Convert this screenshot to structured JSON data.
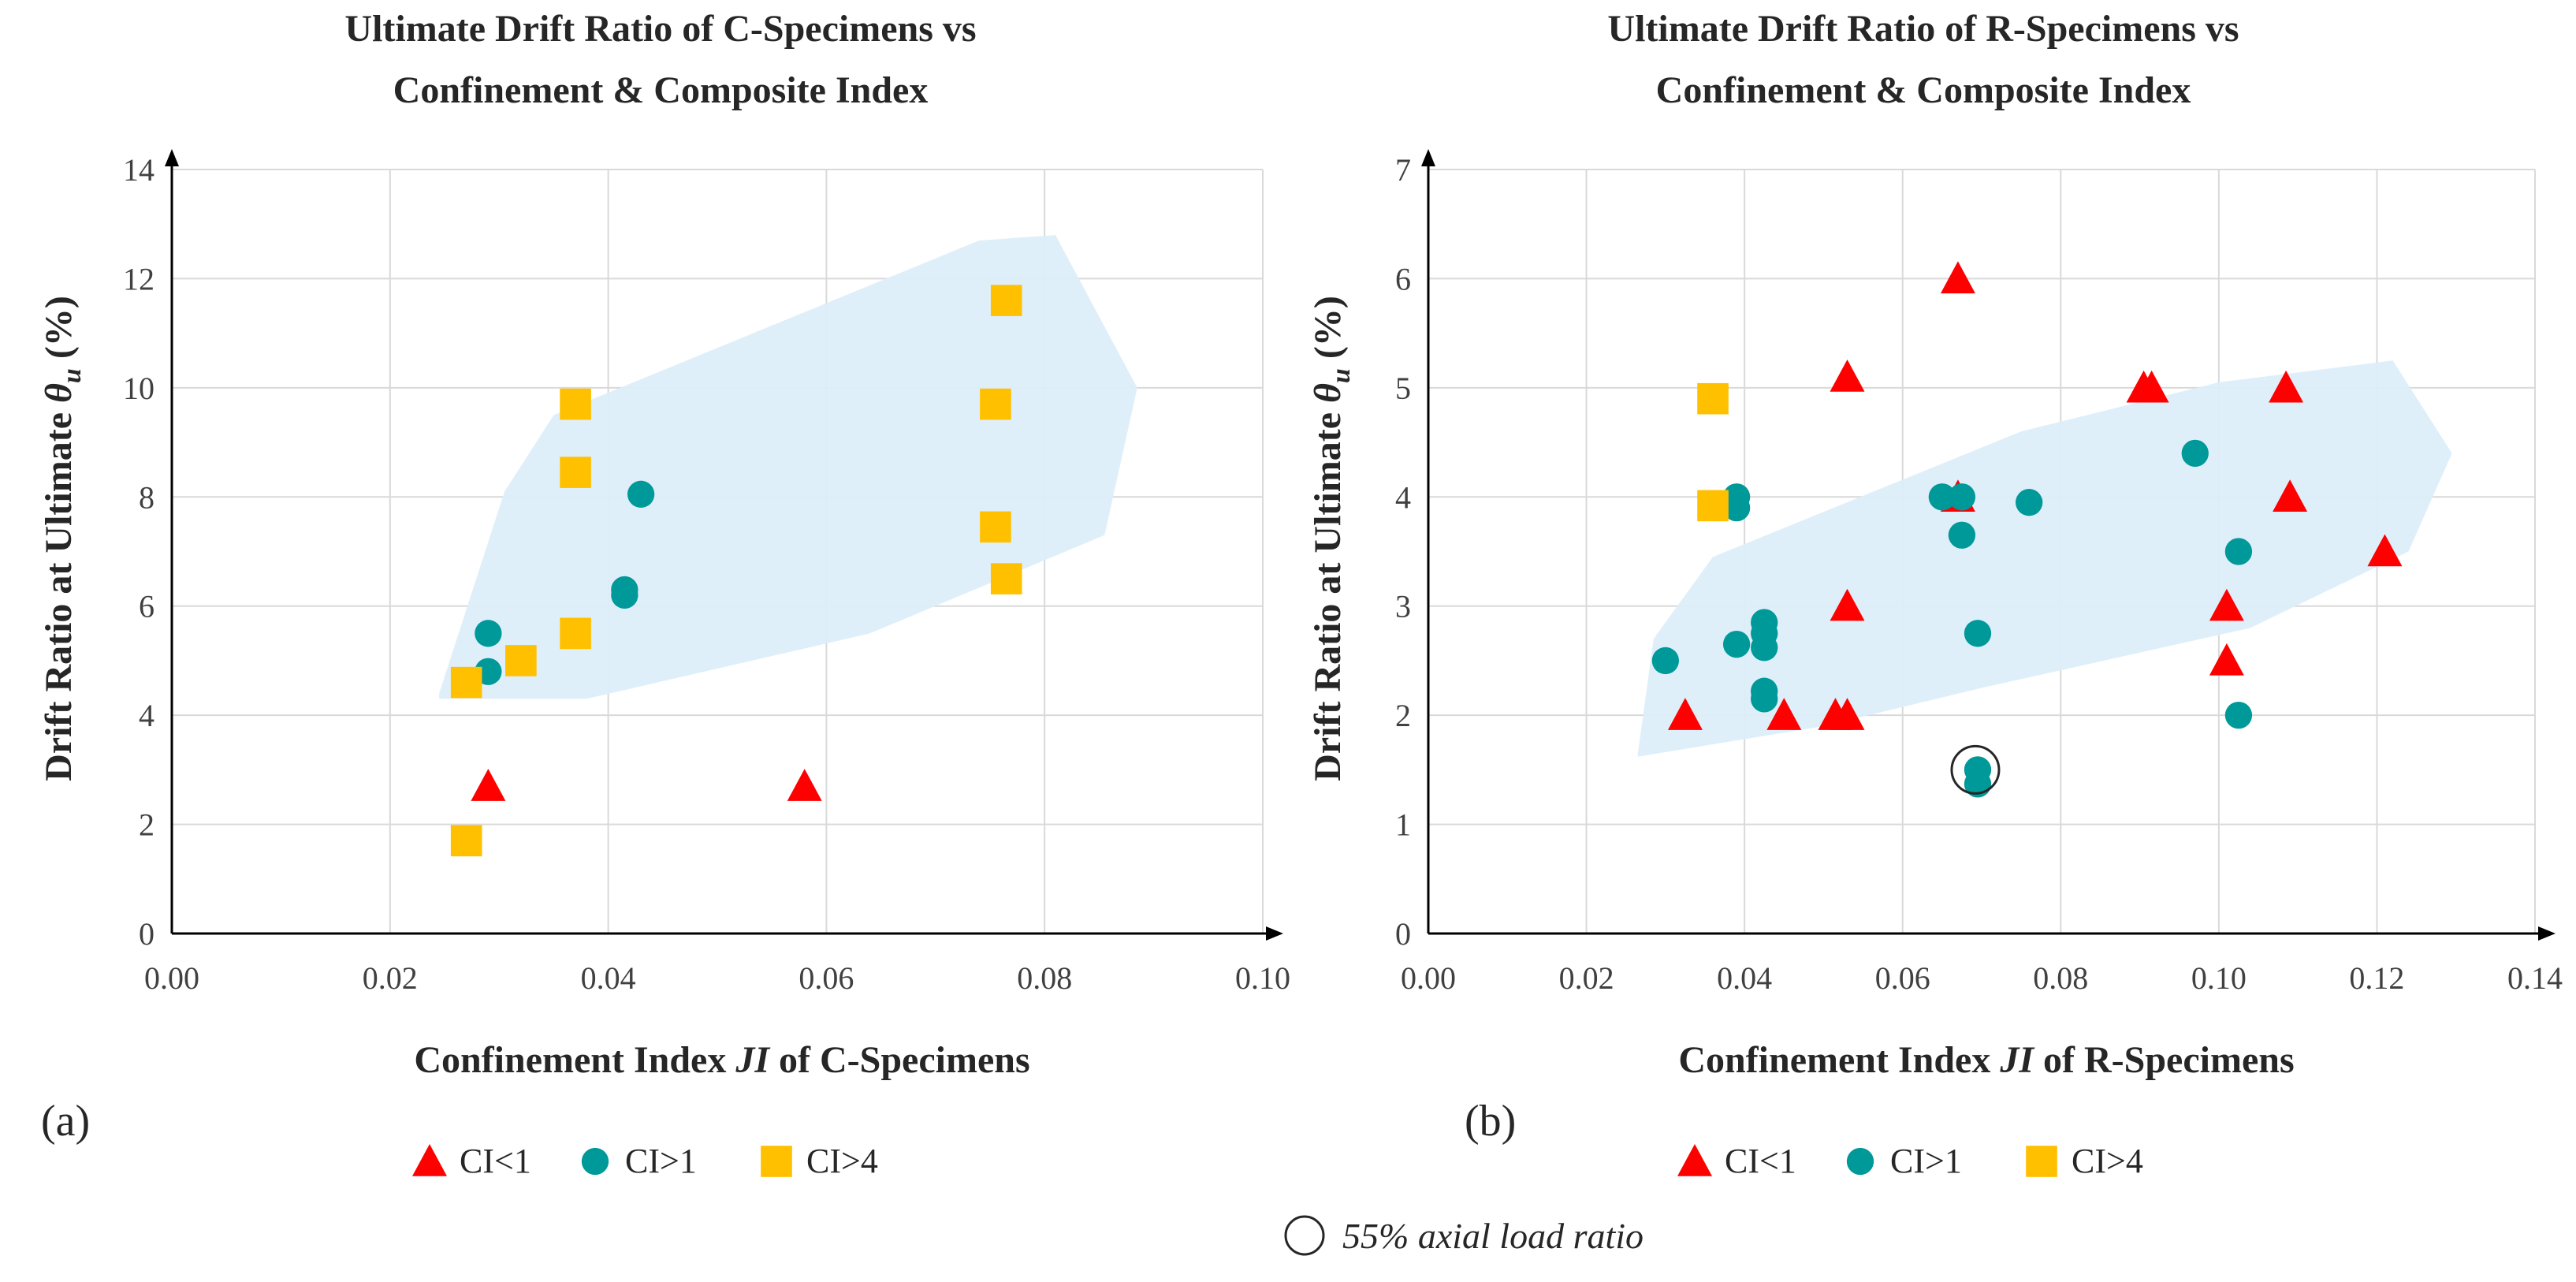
{
  "chart_data": [
    {
      "type": "scatter",
      "panel": "(a)",
      "title_lines": [
        "Ultimate Drift Ratio of C-Specimens vs",
        "Confinement & Composite Index"
      ],
      "xlabel": "Confinement Index JI of C-Specimens",
      "xlabel_parts": [
        "Confinement Index ",
        "JI",
        " of C-Specimens"
      ],
      "ylabel": "Drift Ratio at Ultimate θu (%)",
      "ylabel_parts": [
        "Drift Ratio at Ultimate ",
        "θ",
        "u",
        " (%)"
      ],
      "xlim": [
        0,
        0.1
      ],
      "ylim": [
        0,
        14
      ],
      "xticks": [
        "0.00",
        "0.02",
        "0.04",
        "0.06",
        "0.08",
        "0.10"
      ],
      "yticks": [
        "0",
        "2",
        "4",
        "6",
        "8",
        "10",
        "12",
        "14"
      ],
      "grid": true,
      "region": [
        [
          0.0245,
          4.4
        ],
        [
          0.0305,
          8.1
        ],
        [
          0.035,
          9.5
        ],
        [
          0.074,
          12.7
        ],
        [
          0.081,
          12.8
        ],
        [
          0.0885,
          10.0
        ],
        [
          0.0855,
          7.3
        ],
        [
          0.064,
          5.5
        ],
        [
          0.038,
          4.3
        ],
        [
          0.0245,
          4.3
        ]
      ],
      "series": [
        {
          "name": "CI<1",
          "marker": "triangle",
          "color": "#ff0000",
          "points": [
            [
              0.029,
              2.7
            ],
            [
              0.058,
              2.7
            ]
          ]
        },
        {
          "name": "CI>1",
          "marker": "circle",
          "color": "#009999",
          "points": [
            [
              0.029,
              5.5
            ],
            [
              0.029,
              4.8
            ],
            [
              0.0415,
              6.3
            ],
            [
              0.0415,
              6.2
            ],
            [
              0.043,
              8.05
            ]
          ]
        },
        {
          "name": "CI>4",
          "marker": "square",
          "color": "#ffc000",
          "points": [
            [
              0.027,
              4.6
            ],
            [
              0.027,
              1.7
            ],
            [
              0.032,
              5.0
            ],
            [
              0.037,
              9.7
            ],
            [
              0.037,
              8.45
            ],
            [
              0.037,
              5.5
            ],
            [
              0.0755,
              9.7
            ],
            [
              0.0755,
              7.45
            ],
            [
              0.0765,
              11.6
            ],
            [
              0.0765,
              6.5
            ]
          ]
        }
      ]
    },
    {
      "type": "scatter",
      "panel": "(b)",
      "title_lines": [
        "Ultimate Drift Ratio of R-Specimens vs",
        "Confinement & Composite Index"
      ],
      "xlabel": "Confinement Index JI of R-Specimens",
      "xlabel_parts": [
        "Confinement Index ",
        "JI",
        " of R-Specimens"
      ],
      "ylabel": "Drift Ratio at Ultimate θu (%)",
      "ylabel_parts": [
        "Drift Ratio at Ultimate ",
        "θ",
        "u",
        " (%)"
      ],
      "xlim": [
        0,
        0.14
      ],
      "ylim": [
        0,
        7
      ],
      "xticks": [
        "0.00",
        "0.02",
        "0.04",
        "0.06",
        "0.08",
        "0.10",
        "0.12",
        "0.14"
      ],
      "yticks": [
        "0",
        "1",
        "2",
        "3",
        "4",
        "5",
        "6",
        "7"
      ],
      "grid": true,
      "region": [
        [
          0.0265,
          1.65
        ],
        [
          0.0285,
          2.7
        ],
        [
          0.036,
          3.45
        ],
        [
          0.075,
          4.6
        ],
        [
          0.1,
          5.05
        ],
        [
          0.122,
          5.25
        ],
        [
          0.1295,
          4.4
        ],
        [
          0.124,
          3.5
        ],
        [
          0.104,
          2.8
        ],
        [
          0.07,
          2.25
        ],
        [
          0.05,
          1.9
        ],
        [
          0.0265,
          1.62
        ]
      ],
      "series": [
        {
          "name": "CI<1",
          "marker": "triangle",
          "color": "#ff0000",
          "points": [
            [
              0.0325,
              2.0
            ],
            [
              0.045,
              2.0
            ],
            [
              0.0515,
              2.0
            ],
            [
              0.053,
              2.0
            ],
            [
              0.053,
              3.0
            ],
            [
              0.053,
              5.1
            ],
            [
              0.067,
              6.0
            ],
            [
              0.067,
              4.0
            ],
            [
              0.0905,
              5.0
            ],
            [
              0.0915,
              5.0
            ],
            [
              0.101,
              3.0
            ],
            [
              0.101,
              2.5
            ],
            [
              0.1085,
              5.0
            ],
            [
              0.109,
              4.0
            ],
            [
              0.121,
              3.5
            ]
          ]
        },
        {
          "name": "CI>1",
          "marker": "circle",
          "color": "#009999",
          "points": [
            [
              0.03,
              2.5
            ],
            [
              0.039,
              4.0
            ],
            [
              0.039,
              3.9
            ],
            [
              0.039,
              2.65
            ],
            [
              0.0425,
              2.85
            ],
            [
              0.0425,
              2.75
            ],
            [
              0.0425,
              2.62
            ],
            [
              0.0425,
              2.22
            ],
            [
              0.0425,
              2.15
            ],
            [
              0.065,
              4.0
            ],
            [
              0.0675,
              4.0
            ],
            [
              0.0675,
              3.65
            ],
            [
              0.0695,
              2.75
            ],
            [
              0.0695,
              1.5
            ],
            [
              0.0695,
              1.37
            ],
            [
              0.076,
              3.95
            ],
            [
              0.097,
              4.4
            ],
            [
              0.1025,
              3.5
            ],
            [
              0.1025,
              2.0
            ]
          ]
        },
        {
          "name": "CI>4",
          "marker": "square",
          "color": "#ffc000",
          "points": [
            [
              0.036,
              4.9
            ],
            [
              0.036,
              3.92
            ]
          ]
        }
      ],
      "annotation_point": [
        0.0692,
        1.5
      ]
    }
  ],
  "legend_items": [
    "CI<1",
    "CI>1",
    "CI>4"
  ],
  "note": "55% axial load ratio"
}
